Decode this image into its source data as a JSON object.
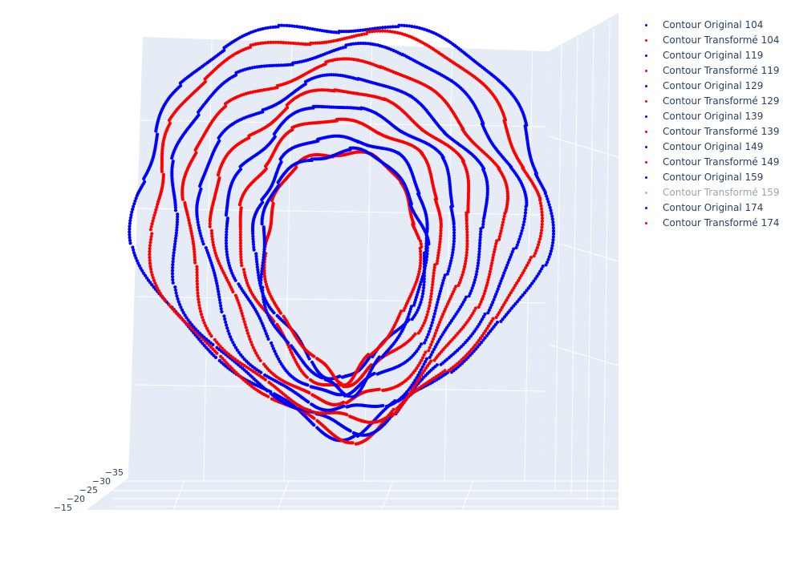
{
  "chart_data": {
    "type": "scatter",
    "series": [
      {
        "name": "Contour Original 104",
        "color": "#0000ff",
        "visible": true
      },
      {
        "name": "Contour Transformé 104",
        "color": "#ff0000",
        "visible": true
      },
      {
        "name": "Contour Original 119",
        "color": "#0000ff",
        "visible": true
      },
      {
        "name": "Contour Transformé 119",
        "color": "#ff0000",
        "visible": true
      },
      {
        "name": "Contour Original 129",
        "color": "#0000ff",
        "visible": true
      },
      {
        "name": "Contour Transformé 129",
        "color": "#ff0000",
        "visible": true
      },
      {
        "name": "Contour Original 139",
        "color": "#0000ff",
        "visible": true
      },
      {
        "name": "Contour Transformé 139",
        "color": "#ff0000",
        "visible": true
      },
      {
        "name": "Contour Original 149",
        "color": "#0000ff",
        "visible": true
      },
      {
        "name": "Contour Transformé 149",
        "color": "#ff0000",
        "visible": true
      },
      {
        "name": "Contour Original 159",
        "color": "#0000ff",
        "visible": true
      },
      {
        "name": "Contour Transformé 159",
        "color": "#ff0000",
        "visible": false
      },
      {
        "name": "Contour Original 174",
        "color": "#0000ff",
        "visible": true
      },
      {
        "name": "Contour Transformé 174",
        "color": "#ff0000",
        "visible": true
      }
    ],
    "z_ticks": [
      "−35",
      "−30",
      "−25",
      "−20",
      "−15"
    ],
    "legend_position": "top-right",
    "grid": true,
    "scene_background": "#e5ecf6"
  }
}
